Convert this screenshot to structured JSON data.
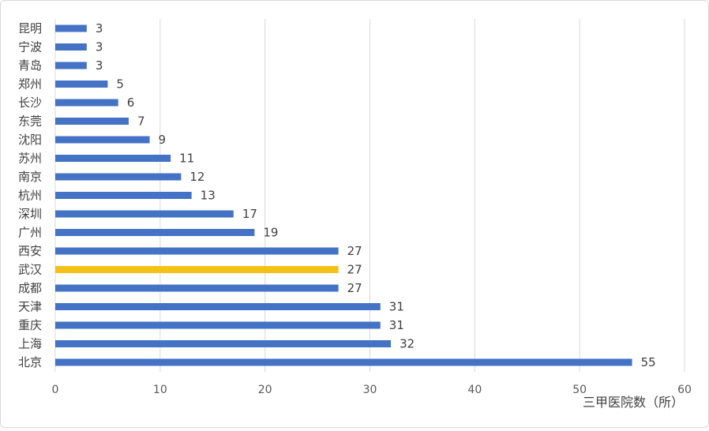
{
  "chart_data": {
    "type": "bar",
    "orientation": "horizontal",
    "categories": [
      "昆明",
      "宁波",
      "青岛",
      "郑州",
      "长沙",
      "东莞",
      "沈阳",
      "苏州",
      "南京",
      "杭州",
      "深圳",
      "广州",
      "西安",
      "武汉",
      "成都",
      "天津",
      "重庆",
      "上海",
      "北京"
    ],
    "values": [
      3,
      3,
      3,
      5,
      6,
      7,
      9,
      11,
      12,
      13,
      17,
      19,
      27,
      27,
      27,
      31,
      31,
      32,
      55
    ],
    "xlabel": "三甲医院数（所）",
    "xlim": [
      0,
      60
    ],
    "xticks": [
      0,
      10,
      20,
      30,
      40,
      50,
      60
    ],
    "grid": true,
    "colors": {
      "bar": "#4472c4",
      "highlight": "#f5c017",
      "grid": "#d9d9d9"
    },
    "highlight_category": "武汉"
  }
}
